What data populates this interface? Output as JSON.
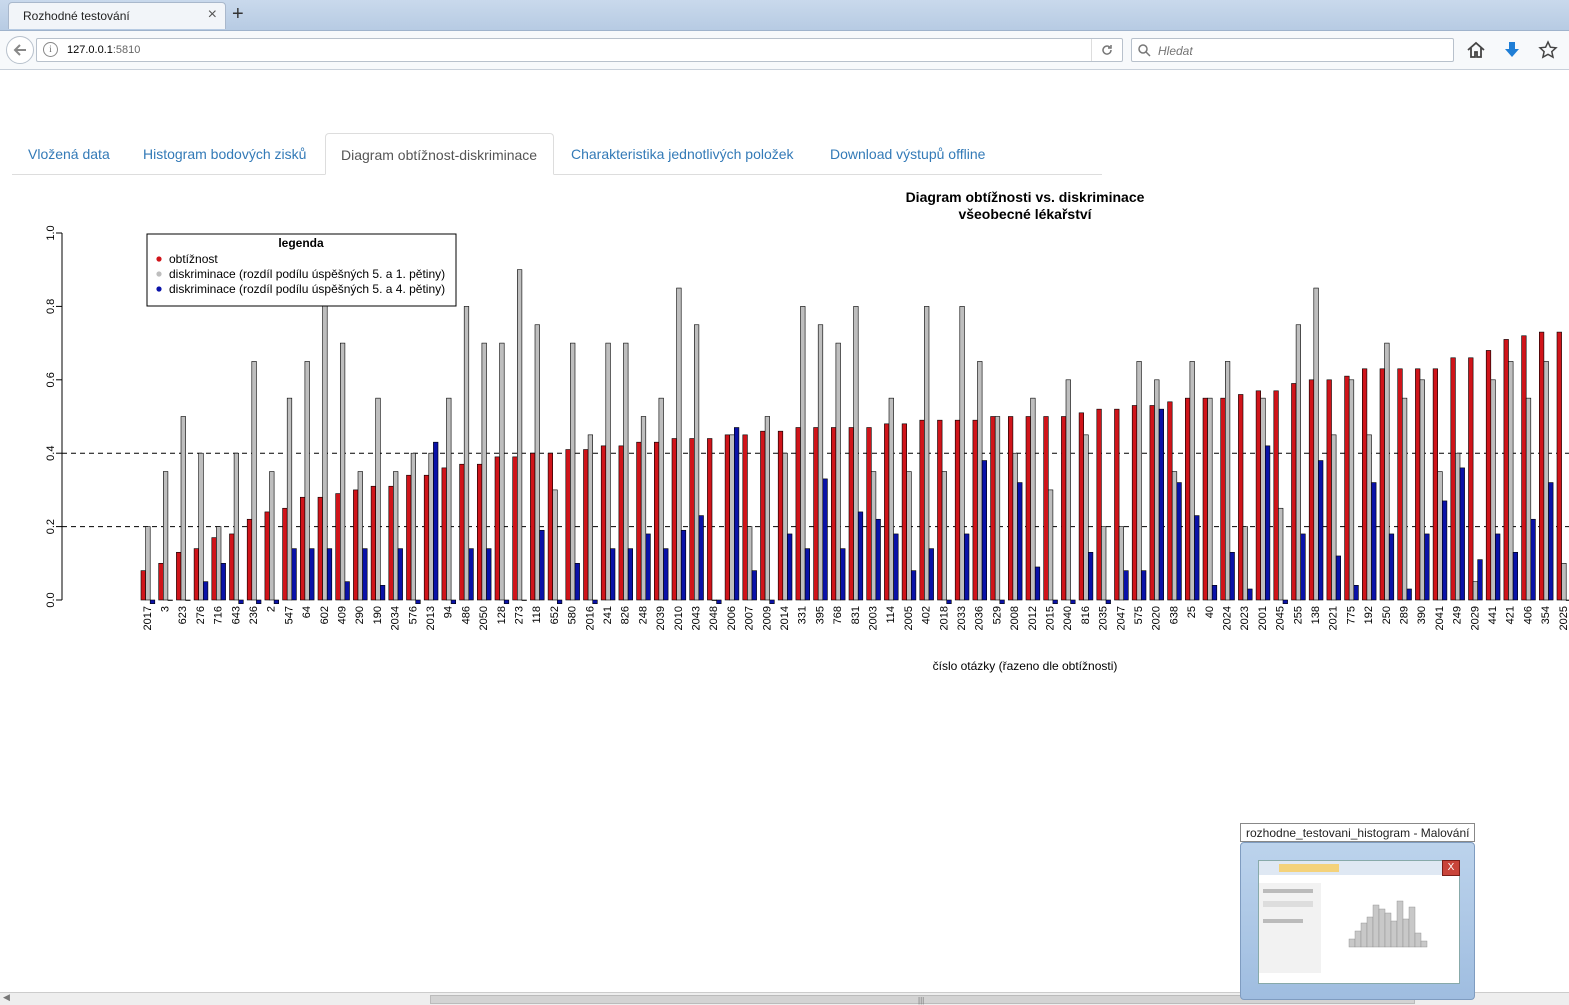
{
  "browser": {
    "tab_title": "Rozhodné testování",
    "tab_close": "×",
    "new_tab": "+",
    "url_host": "127.0.0.1",
    "url_port": ":5810",
    "search_placeholder": "Hledat",
    "icons": [
      "back-arrow-icon",
      "info-icon",
      "reload-icon",
      "search-icon",
      "home-icon",
      "download-icon",
      "bookmark-star-icon"
    ]
  },
  "app_tabs": [
    {
      "label": "Vložená data",
      "active": false
    },
    {
      "label": "Histogram bodových zisků",
      "active": false
    },
    {
      "label": "Diagram obtížnost-diskriminace",
      "active": true
    },
    {
      "label": "Charakteristika jednotlivých položek",
      "active": false
    },
    {
      "label": "Download výstupů offline",
      "active": false
    }
  ],
  "taskbar_preview": {
    "title": "rozhodne_testovani_histogram - Malování",
    "close": "X"
  },
  "chart_data": {
    "type": "bar",
    "title": "Diagram obtížnosti vs. diskriminace",
    "subtitle": "všeobecné lékařství",
    "xlabel": "číslo otázky (řazeno dle obtížnosti)",
    "ylabel": "",
    "ylim": [
      0,
      1
    ],
    "yticks": [
      "0.0",
      "0.2",
      "0.4",
      "0.6",
      "0.8",
      "1.0"
    ],
    "reference_lines": [
      0.2,
      0.4
    ],
    "colors": {
      "obtiznost": "#d0141a",
      "disk51": "#bebebe",
      "disk54": "#0a12a8"
    },
    "legend": {
      "title": "legenda",
      "position": "top-left",
      "entries": [
        "obtížnost",
        "diskriminace (rozdíl podílu úspěšných 5. a 1. pětiny)",
        "diskriminace (rozdíl podílu úspěšných 5. a 4. pětiny)"
      ]
    },
    "categories": [
      "2017",
      "3",
      "623",
      "276",
      "716",
      "643",
      "236",
      "2",
      "547",
      "64",
      "602",
      "409",
      "290",
      "190",
      "2034",
      "576",
      "2013",
      "94",
      "486",
      "2050",
      "128",
      "273",
      "118",
      "652",
      "580",
      "2016",
      "241",
      "826",
      "248",
      "2039",
      "2010",
      "2043",
      "2048",
      "2006",
      "2007",
      "2009",
      "2014",
      "331",
      "395",
      "768",
      "831",
      "2003",
      "114",
      "2005",
      "402",
      "2018",
      "2033",
      "2036",
      "529",
      "2008",
      "2012",
      "2015",
      "2040",
      "816",
      "2035",
      "2047",
      "575",
      "2020",
      "638",
      "25",
      "40",
      "2024",
      "2023",
      "2001",
      "2045",
      "255",
      "138",
      "2021",
      "775",
      "192",
      "250",
      "289",
      "390",
      "2041",
      "249",
      "2029",
      "441",
      "421",
      "406",
      "354",
      "2025"
    ],
    "series": [
      {
        "name": "obtížnost",
        "values": [
          0.08,
          0.1,
          0.13,
          0.14,
          0.17,
          0.18,
          0.22,
          0.24,
          0.25,
          0.28,
          0.28,
          0.29,
          0.3,
          0.31,
          0.31,
          0.34,
          0.34,
          0.36,
          0.37,
          0.37,
          0.39,
          0.39,
          0.4,
          0.4,
          0.41,
          0.41,
          0.42,
          0.42,
          0.43,
          0.43,
          0.44,
          0.44,
          0.44,
          0.45,
          0.45,
          0.46,
          0.46,
          0.47,
          0.47,
          0.47,
          0.47,
          0.47,
          0.48,
          0.48,
          0.49,
          0.49,
          0.49,
          0.49,
          0.5,
          0.5,
          0.5,
          0.5,
          0.5,
          0.51,
          0.52,
          0.52,
          0.53,
          0.53,
          0.54,
          0.55,
          0.55,
          0.55,
          0.56,
          0.57,
          0.57,
          0.59,
          0.6,
          0.6,
          0.61,
          0.63,
          0.63,
          0.63,
          0.63,
          0.63,
          0.66,
          0.66,
          0.68,
          0.71,
          0.72,
          0.73,
          0.73
        ]
      },
      {
        "name": "diskriminace (rozdíl podílu úspěšných 5. a 1. pětiny)",
        "values": [
          0.2,
          0.35,
          0.5,
          0.4,
          0.2,
          0.4,
          0.65,
          0.35,
          0.55,
          0.65,
          0.95,
          0.7,
          0.35,
          0.55,
          0.35,
          0.4,
          0.4,
          0.55,
          0.8,
          0.7,
          0.7,
          0.9,
          0.75,
          0.3,
          0.7,
          0.45,
          0.7,
          0.7,
          0.5,
          0.55,
          0.85,
          0.75,
          0.0,
          0.45,
          0.2,
          0.5,
          0.4,
          0.8,
          0.75,
          0.7,
          0.8,
          0.35,
          0.55,
          0.35,
          0.8,
          0.35,
          0.8,
          0.65,
          0.5,
          0.4,
          0.55,
          0.3,
          0.6,
          0.45,
          0.2,
          0.2,
          0.65,
          0.6,
          0.35,
          0.65,
          0.55,
          0.65,
          0.2,
          0.55,
          0.25,
          0.75,
          0.85,
          0.45,
          0.6,
          0.45,
          0.7,
          0.55,
          0.6,
          0.35,
          0.4,
          0.05,
          0.6,
          0.65,
          0.55,
          0.65,
          0.1
        ]
      },
      {
        "name": "diskriminace (rozdíl podílu úspěšných 5. a 4. pětiny)",
        "values": [
          -0.01,
          0.0,
          0.0,
          0.05,
          0.1,
          -0.01,
          -0.01,
          -0.01,
          0.14,
          0.14,
          0.14,
          0.05,
          0.14,
          0.04,
          0.14,
          -0.01,
          0.43,
          -0.01,
          0.14,
          0.14,
          -0.01,
          0.0,
          0.19,
          -0.01,
          0.1,
          -0.01,
          0.14,
          0.14,
          0.18,
          0.14,
          0.19,
          0.23,
          -0.01,
          0.47,
          0.08,
          -0.01,
          0.18,
          0.14,
          0.33,
          0.14,
          0.24,
          0.22,
          0.18,
          0.08,
          0.14,
          -0.01,
          0.18,
          0.38,
          -0.01,
          0.32,
          0.09,
          -0.01,
          -0.01,
          0.13,
          -0.01,
          0.08,
          0.08,
          0.52,
          0.32,
          0.23,
          0.04,
          0.13,
          0.03,
          0.42,
          -0.01,
          0.18,
          0.38,
          0.12,
          0.04,
          0.32,
          0.18,
          0.03,
          0.18,
          0.27,
          0.36,
          0.11,
          0.18,
          0.13,
          0.22,
          0.32,
          0.0
        ]
      }
    ]
  }
}
